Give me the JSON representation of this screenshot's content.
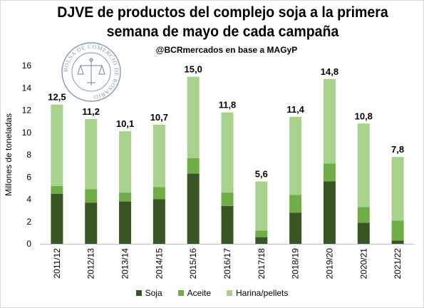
{
  "title_line1": "DJVE de productos del complejo soja a la primera",
  "title_line2": "semana de mayo de cada campaña",
  "subtitle": "@BCRmercados en base a MAGyP",
  "seal": {
    "arc_text": "BOLSA DE COMERCIO DE ROSARIO"
  },
  "colors": {
    "soja": "#375623",
    "aceite": "#70ad47",
    "harina": "#a9d18e"
  },
  "chart_data": {
    "type": "bar",
    "stacked": true,
    "categories": [
      "2011/12",
      "2012/13",
      "2013/14",
      "2014/15",
      "2015/16",
      "2016/17",
      "2017/18",
      "2018/19",
      "2019/20",
      "2020/21",
      "2021/22"
    ],
    "series": [
      {
        "name": "Soja",
        "values": [
          4.5,
          3.7,
          3.8,
          4.0,
          6.3,
          3.4,
          0.6,
          2.8,
          5.6,
          1.9,
          0.3
        ]
      },
      {
        "name": "Aceite",
        "values": [
          0.7,
          1.2,
          0.8,
          1.1,
          1.4,
          1.2,
          0.6,
          1.6,
          1.6,
          1.4,
          1.8
        ]
      },
      {
        "name": "Harina/pellets",
        "values": [
          7.3,
          6.3,
          5.5,
          5.6,
          7.3,
          7.2,
          4.4,
          7.0,
          7.6,
          7.5,
          5.7
        ]
      }
    ],
    "totals": [
      "12,5",
      "11,2",
      "10,1",
      "10,7",
      "15,0",
      "11,8",
      "5,6",
      "11,4",
      "14,8",
      "10,8",
      "7,8"
    ],
    "yticks": [
      "0",
      "2",
      "4",
      "6",
      "8",
      "10",
      "12",
      "14",
      "16"
    ],
    "ylim": [
      0,
      16
    ],
    "ylabel": "Millones de toneladas",
    "xlabel": "",
    "grid": false,
    "legend_position": "bottom"
  },
  "legend": [
    {
      "label": "Soja",
      "color": "#375623"
    },
    {
      "label": "Aceite",
      "color": "#70ad47"
    },
    {
      "label": "Harina/pellets",
      "color": "#a9d18e"
    }
  ]
}
